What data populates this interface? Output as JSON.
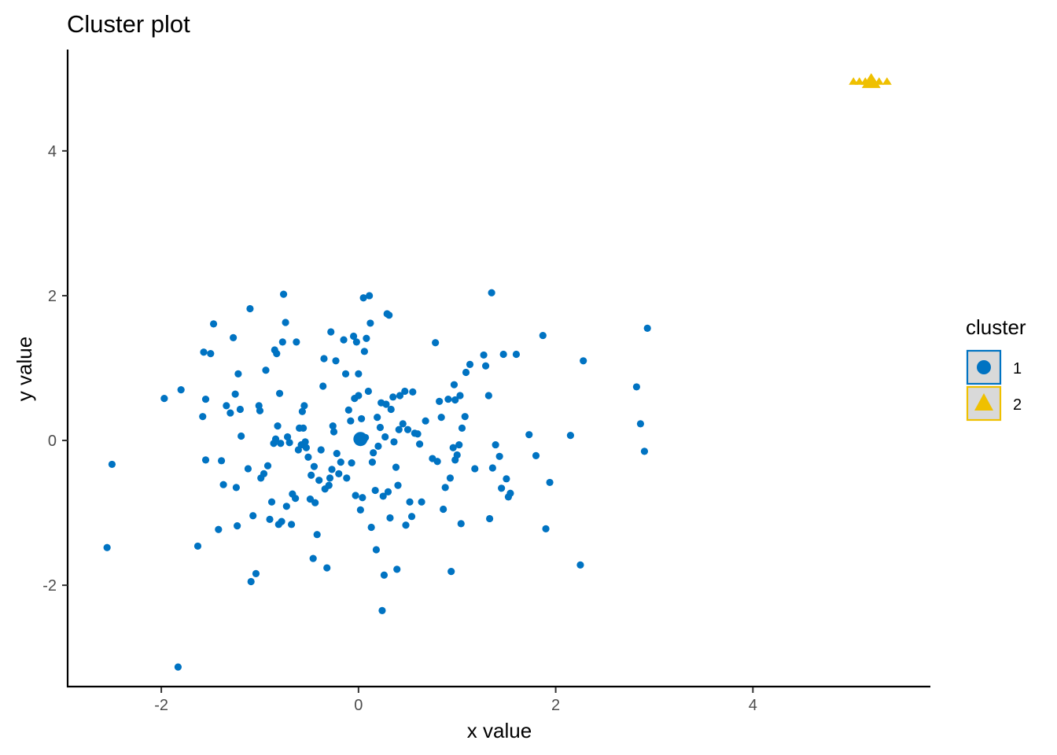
{
  "chart_data": {
    "type": "scatter",
    "title": "Cluster plot",
    "xlabel": "x value",
    "ylabel": "y value",
    "xlim": [
      -2.95,
      5.8
    ],
    "ylim": [
      -3.4,
      5.4
    ],
    "xticks": [
      -2,
      0,
      2,
      4
    ],
    "yticks": [
      -2,
      0,
      2,
      4
    ],
    "xtick_labels": [
      "-2",
      "0",
      "2",
      "4"
    ],
    "ytick_labels": [
      "-2",
      "0",
      "2",
      "4"
    ],
    "grid": false,
    "legend": {
      "title": "cluster",
      "placement": "right",
      "entries": [
        {
          "label": "1",
          "shape": "circle",
          "color": "#0073C2"
        },
        {
          "label": "2",
          "shape": "triangle",
          "color": "#EFC000"
        }
      ]
    },
    "series": [
      {
        "name": "1",
        "shape": "circle",
        "color": "#0073C2",
        "center": [
          0.02,
          0.02
        ],
        "points": [
          [
            -2.55,
            -1.48
          ],
          [
            -2.5,
            -0.33
          ],
          [
            -1.97,
            0.58
          ],
          [
            -1.8,
            0.7
          ],
          [
            -1.83,
            -3.13
          ],
          [
            -1.63,
            -1.46
          ],
          [
            -1.58,
            0.33
          ],
          [
            -1.57,
            1.22
          ],
          [
            -1.55,
            0.57
          ],
          [
            -1.55,
            -0.27
          ],
          [
            -1.5,
            1.2
          ],
          [
            -1.47,
            1.61
          ],
          [
            -1.42,
            -1.23
          ],
          [
            -1.39,
            -0.28
          ],
          [
            -1.37,
            -0.61
          ],
          [
            -1.34,
            0.48
          ],
          [
            -1.3,
            0.38
          ],
          [
            -1.27,
            1.42
          ],
          [
            -1.25,
            0.64
          ],
          [
            -1.24,
            -0.65
          ],
          [
            -1.23,
            -1.18
          ],
          [
            -1.22,
            0.92
          ],
          [
            -1.2,
            0.43
          ],
          [
            -1.19,
            0.06
          ],
          [
            -1.12,
            -0.39
          ],
          [
            -1.1,
            1.82
          ],
          [
            -1.09,
            -1.95
          ],
          [
            -1.07,
            -1.04
          ],
          [
            -1.04,
            -1.84
          ],
          [
            -1.01,
            0.48
          ],
          [
            -1.0,
            0.41
          ],
          [
            -0.99,
            -0.52
          ],
          [
            -0.96,
            -0.46
          ],
          [
            -0.94,
            0.97
          ],
          [
            -0.92,
            -0.35
          ],
          [
            -0.9,
            -1.09
          ],
          [
            -0.88,
            -0.85
          ],
          [
            -0.86,
            -0.04
          ],
          [
            -0.85,
            1.25
          ],
          [
            -0.84,
            0.02
          ],
          [
            -0.83,
            1.2
          ],
          [
            -0.82,
            0.2
          ],
          [
            -0.81,
            -1.16
          ],
          [
            -0.8,
            0.65
          ],
          [
            -0.79,
            -0.04
          ],
          [
            -0.78,
            -1.12
          ],
          [
            -0.77,
            1.36
          ],
          [
            -0.76,
            2.02
          ],
          [
            -0.74,
            1.63
          ],
          [
            -0.73,
            -0.91
          ],
          [
            -0.72,
            0.05
          ],
          [
            -0.7,
            -0.03
          ],
          [
            -0.68,
            -1.16
          ],
          [
            -0.67,
            -0.74
          ],
          [
            -0.64,
            -0.8
          ],
          [
            -0.63,
            1.36
          ],
          [
            -0.61,
            -0.13
          ],
          [
            -0.6,
            0.17
          ],
          [
            -0.58,
            -0.06
          ],
          [
            -0.57,
            0.4
          ],
          [
            -0.56,
            0.17
          ],
          [
            -0.55,
            0.48
          ],
          [
            -0.54,
            -0.02
          ],
          [
            -0.53,
            -0.1
          ],
          [
            -0.51,
            -0.23
          ],
          [
            -0.49,
            -0.81
          ],
          [
            -0.48,
            -0.48
          ],
          [
            -0.46,
            -1.63
          ],
          [
            -0.45,
            -0.36
          ],
          [
            -0.44,
            -0.86
          ],
          [
            -0.42,
            -1.3
          ],
          [
            -0.4,
            -0.55
          ],
          [
            -0.38,
            -0.13
          ],
          [
            -0.36,
            0.75
          ],
          [
            -0.35,
            1.13
          ],
          [
            -0.34,
            -0.67
          ],
          [
            -0.32,
            -1.76
          ],
          [
            -0.3,
            -0.62
          ],
          [
            -0.29,
            -0.52
          ],
          [
            -0.28,
            1.5
          ],
          [
            -0.27,
            -0.4
          ],
          [
            -0.26,
            0.2
          ],
          [
            -0.25,
            0.12
          ],
          [
            -0.23,
            1.1
          ],
          [
            -0.22,
            -0.18
          ],
          [
            -0.2,
            -0.46
          ],
          [
            -0.18,
            -0.3
          ],
          [
            -0.15,
            1.39
          ],
          [
            -0.13,
            0.92
          ],
          [
            -0.12,
            -0.52
          ],
          [
            -0.1,
            0.42
          ],
          [
            -0.08,
            0.27
          ],
          [
            -0.07,
            -0.31
          ],
          [
            -0.05,
            1.44
          ],
          [
            -0.04,
            0.58
          ],
          [
            -0.03,
            -0.76
          ],
          [
            -0.02,
            1.36
          ],
          [
            0.0,
            0.92
          ],
          [
            0.0,
            0.62
          ],
          [
            0.02,
            -0.96
          ],
          [
            0.03,
            0.3
          ],
          [
            0.04,
            -0.79
          ],
          [
            0.05,
            1.97
          ],
          [
            0.06,
            1.23
          ],
          [
            0.07,
            0.04
          ],
          [
            0.08,
            1.41
          ],
          [
            0.1,
            0.68
          ],
          [
            0.11,
            2.0
          ],
          [
            0.12,
            1.62
          ],
          [
            0.13,
            -1.2
          ],
          [
            0.14,
            -0.3
          ],
          [
            0.15,
            -0.17
          ],
          [
            0.17,
            -0.69
          ],
          [
            0.18,
            -1.51
          ],
          [
            0.19,
            0.32
          ],
          [
            0.2,
            -0.08
          ],
          [
            0.22,
            0.18
          ],
          [
            0.23,
            0.52
          ],
          [
            0.24,
            -2.35
          ],
          [
            0.25,
            -0.77
          ],
          [
            0.26,
            -1.86
          ],
          [
            0.27,
            0.05
          ],
          [
            0.28,
            0.5
          ],
          [
            0.29,
            1.75
          ],
          [
            0.3,
            -0.71
          ],
          [
            0.31,
            1.73
          ],
          [
            0.32,
            -1.07
          ],
          [
            0.33,
            0.43
          ],
          [
            0.35,
            0.6
          ],
          [
            0.36,
            -0.02
          ],
          [
            0.38,
            -0.37
          ],
          [
            0.39,
            -1.78
          ],
          [
            0.4,
            -0.62
          ],
          [
            0.41,
            0.15
          ],
          [
            0.42,
            0.62
          ],
          [
            0.45,
            0.23
          ],
          [
            0.47,
            0.68
          ],
          [
            0.48,
            -1.17
          ],
          [
            0.5,
            0.15
          ],
          [
            0.52,
            -0.85
          ],
          [
            0.54,
            -1.05
          ],
          [
            0.55,
            0.67
          ],
          [
            0.57,
            0.1
          ],
          [
            0.6,
            0.09
          ],
          [
            0.62,
            -0.05
          ],
          [
            0.64,
            -0.85
          ],
          [
            0.68,
            0.27
          ],
          [
            0.75,
            -0.25
          ],
          [
            0.78,
            1.35
          ],
          [
            0.8,
            -0.29
          ],
          [
            0.82,
            0.54
          ],
          [
            0.84,
            0.32
          ],
          [
            0.86,
            -0.95
          ],
          [
            0.88,
            -0.65
          ],
          [
            0.91,
            0.57
          ],
          [
            0.93,
            -0.52
          ],
          [
            0.94,
            -1.81
          ],
          [
            0.96,
            -0.1
          ],
          [
            0.97,
            0.77
          ],
          [
            0.98,
            0.56
          ],
          [
            0.98,
            -0.27
          ],
          [
            1.0,
            -0.2
          ],
          [
            1.02,
            -0.06
          ],
          [
            1.03,
            0.62
          ],
          [
            1.04,
            -1.15
          ],
          [
            1.05,
            0.17
          ],
          [
            1.08,
            0.33
          ],
          [
            1.09,
            0.94
          ],
          [
            1.13,
            1.05
          ],
          [
            1.18,
            -0.39
          ],
          [
            1.27,
            1.18
          ],
          [
            1.29,
            1.03
          ],
          [
            1.32,
            0.62
          ],
          [
            1.33,
            -1.08
          ],
          [
            1.35,
            2.04
          ],
          [
            1.36,
            -0.38
          ],
          [
            1.39,
            -0.06
          ],
          [
            1.43,
            -0.22
          ],
          [
            1.45,
            -0.66
          ],
          [
            1.47,
            1.19
          ],
          [
            1.5,
            -0.53
          ],
          [
            1.52,
            -0.78
          ],
          [
            1.54,
            -0.73
          ],
          [
            1.6,
            1.19
          ],
          [
            1.73,
            0.08
          ],
          [
            1.8,
            -0.21
          ],
          [
            1.87,
            1.45
          ],
          [
            1.9,
            -1.22
          ],
          [
            1.94,
            -0.58
          ],
          [
            2.15,
            0.07
          ],
          [
            2.25,
            -1.72
          ],
          [
            2.28,
            1.1
          ],
          [
            2.82,
            0.74
          ],
          [
            2.86,
            0.23
          ],
          [
            2.9,
            -0.15
          ],
          [
            2.93,
            1.55
          ]
        ]
      },
      {
        "name": "2",
        "shape": "triangle",
        "color": "#EFC000",
        "center": [
          5.2,
          5.0
        ],
        "points": [
          [
            5.02,
            4.98
          ],
          [
            5.08,
            4.98
          ],
          [
            5.14,
            4.98
          ],
          [
            5.22,
            4.98
          ],
          [
            5.28,
            4.98
          ],
          [
            5.36,
            4.98
          ]
        ]
      }
    ]
  }
}
